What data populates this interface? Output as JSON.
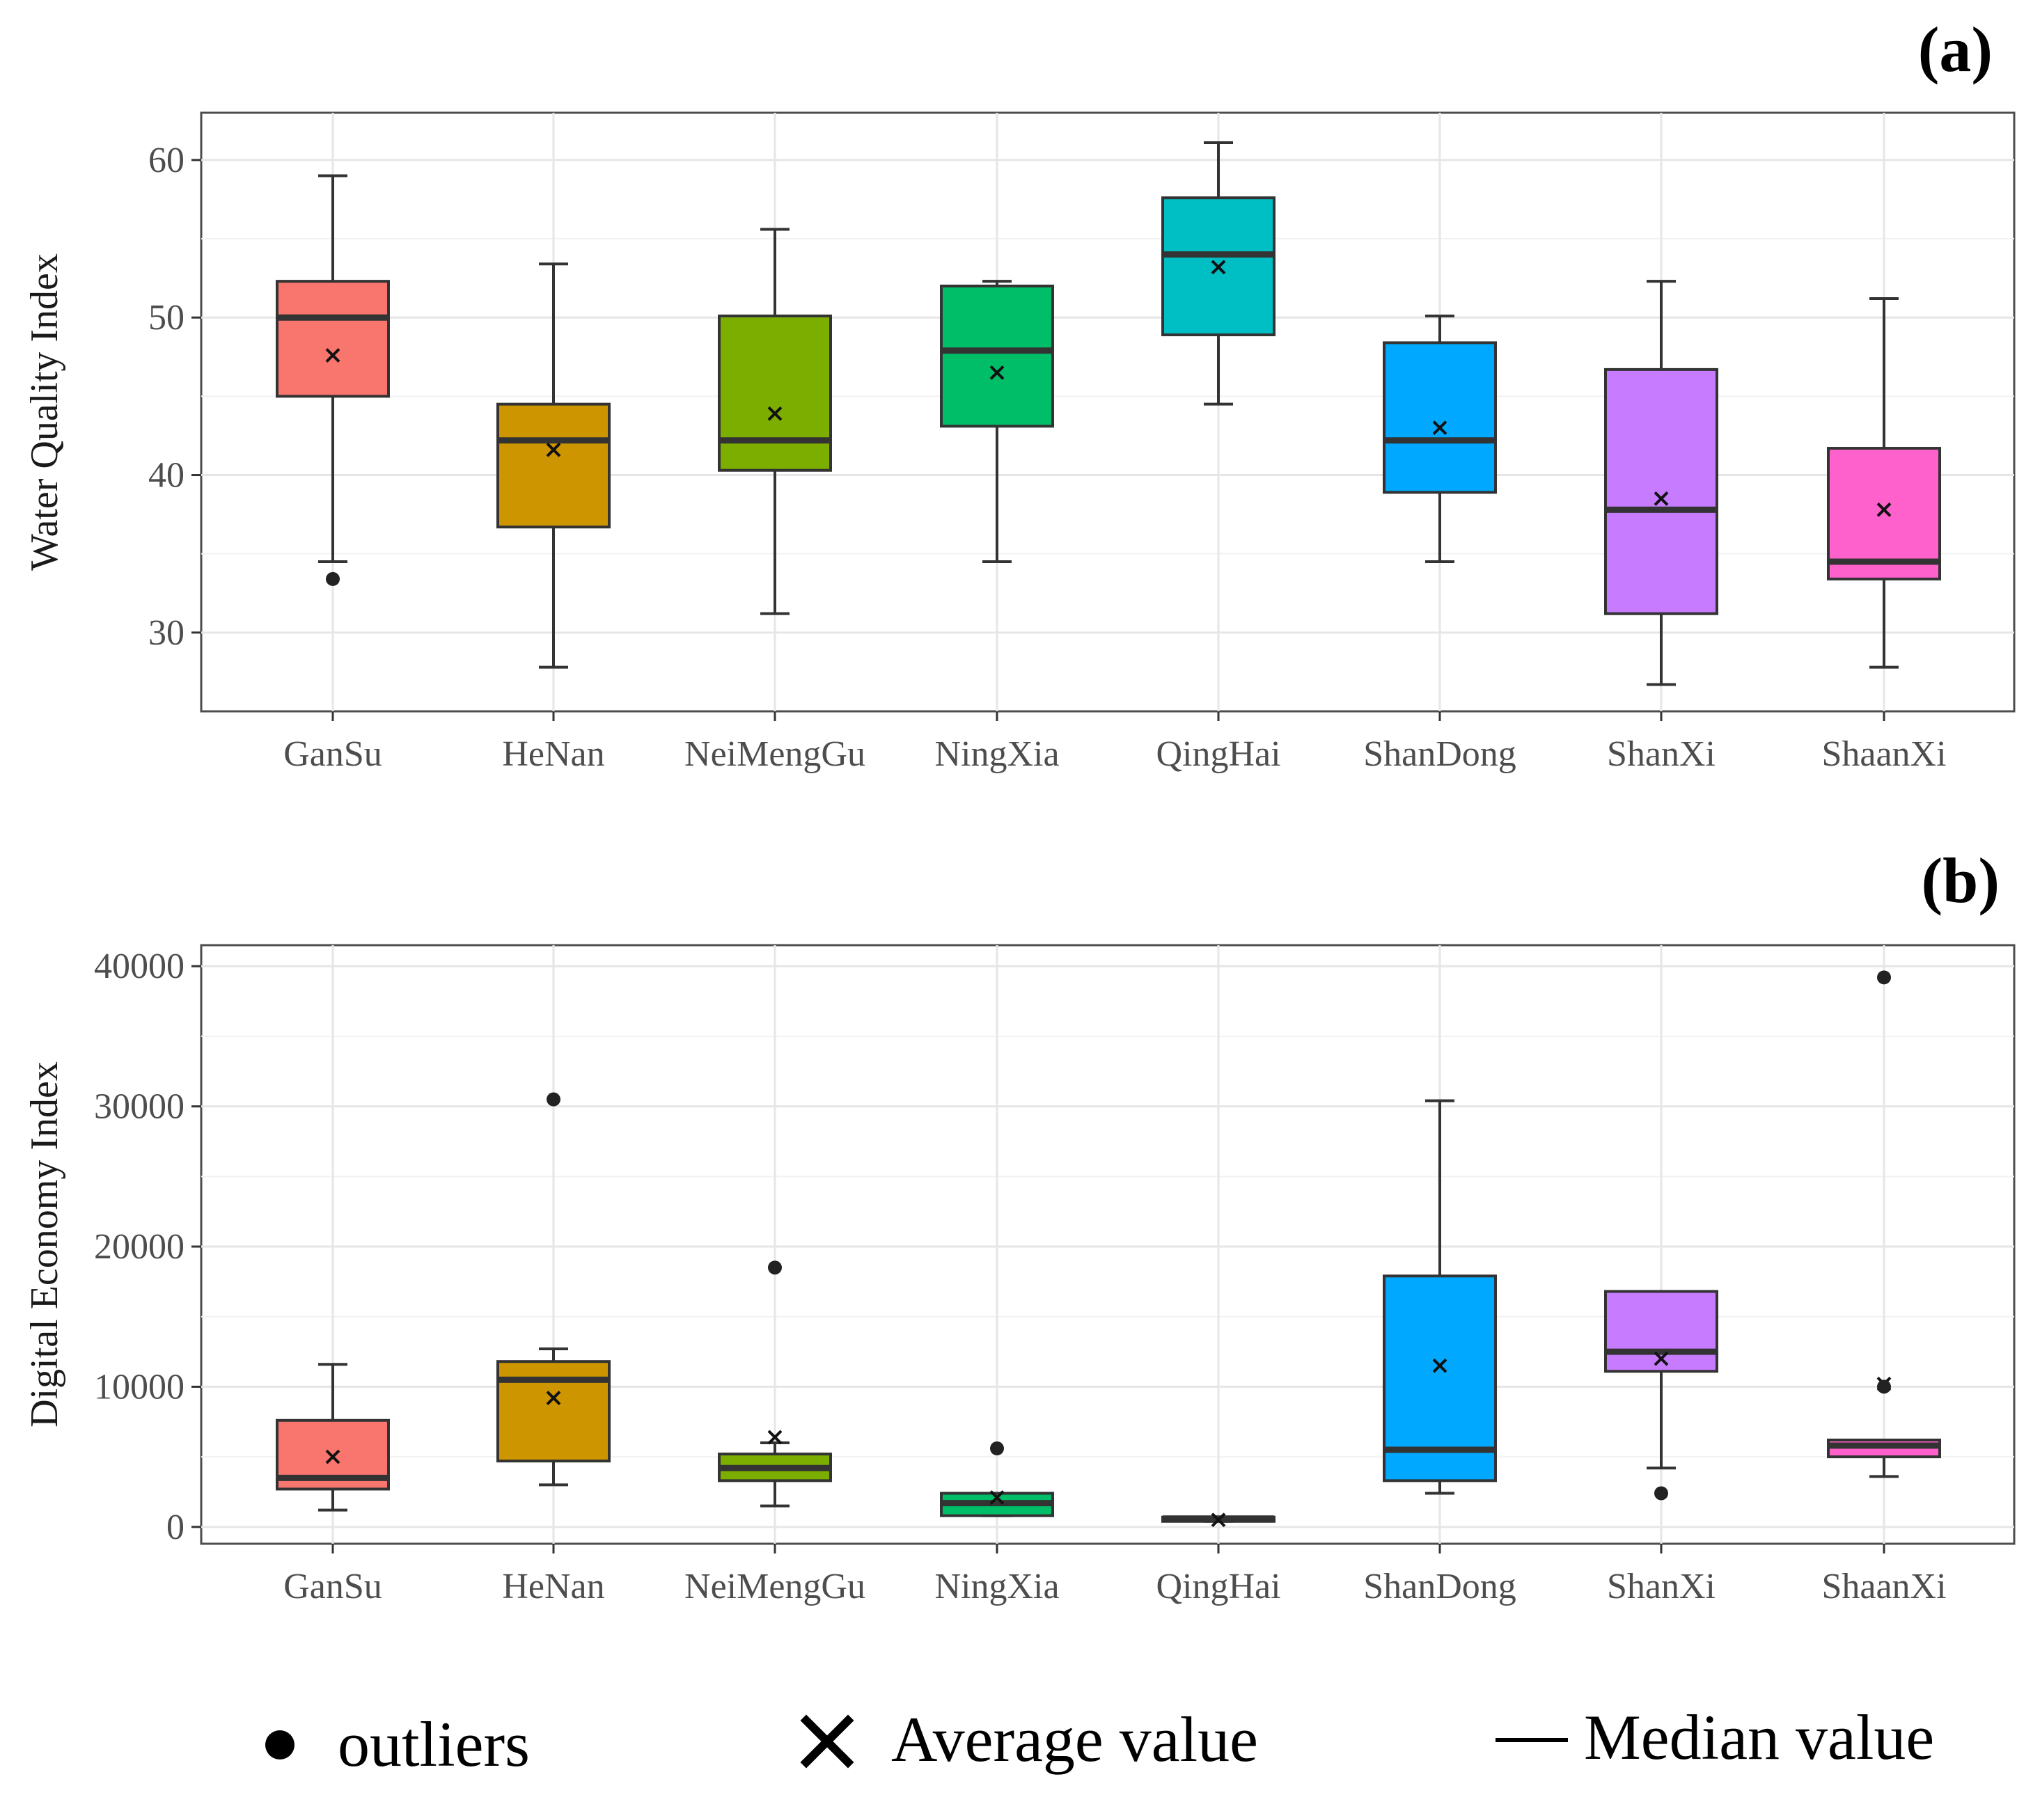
{
  "chart_data": [
    {
      "type": "box",
      "panel_label": "(a)",
      "title": "",
      "xlabel": "",
      "ylabel": "Water Quality Index",
      "ylim": [
        25,
        63
      ],
      "yticks": [
        30,
        40,
        50,
        60
      ],
      "yticklabels": [
        "30",
        "40",
        "50",
        "60"
      ],
      "grid": true,
      "categories": [
        "GanSu",
        "HeNan",
        "NeiMengGu",
        "NingXia",
        "QingHai",
        "ShanDong",
        "ShanXi",
        "ShaanXi"
      ],
      "colors": [
        "#F8766D",
        "#CD9600",
        "#7CAE00",
        "#00BE67",
        "#00BFC4",
        "#00A9FF",
        "#C77CFF",
        "#FF61CC"
      ],
      "boxes": [
        {
          "min": 34.5,
          "q1": 45.0,
          "median": 50.0,
          "q3": 52.3,
          "max": 59.0,
          "mean": 47.6,
          "outliers": [
            33.4
          ]
        },
        {
          "min": 27.8,
          "q1": 36.7,
          "median": 42.2,
          "q3": 44.5,
          "max": 53.4,
          "mean": 41.6,
          "outliers": []
        },
        {
          "min": 31.2,
          "q1": 40.3,
          "median": 42.2,
          "q3": 50.1,
          "max": 55.6,
          "mean": 43.9,
          "outliers": []
        },
        {
          "min": 34.5,
          "q1": 43.1,
          "median": 47.9,
          "q3": 52.0,
          "max": 52.3,
          "mean": 46.5,
          "outliers": []
        },
        {
          "min": 44.5,
          "q1": 48.9,
          "median": 54.0,
          "q3": 57.6,
          "max": 61.1,
          "mean": 53.2,
          "outliers": []
        },
        {
          "min": 34.5,
          "q1": 38.9,
          "median": 42.2,
          "q3": 48.4,
          "max": 50.1,
          "mean": 43.0,
          "outliers": []
        },
        {
          "min": 26.7,
          "q1": 31.2,
          "median": 37.8,
          "q3": 46.7,
          "max": 52.3,
          "mean": 38.5,
          "outliers": []
        },
        {
          "min": 27.8,
          "q1": 33.4,
          "median": 34.5,
          "q3": 41.7,
          "max": 51.2,
          "mean": 37.8,
          "outliers": []
        }
      ]
    },
    {
      "type": "box",
      "panel_label": "(b)",
      "title": "",
      "xlabel": "",
      "ylabel": "Digital Economy Index",
      "ylim": [
        -1200,
        41500
      ],
      "yticks": [
        0,
        10000,
        20000,
        30000,
        40000
      ],
      "yticklabels": [
        "0",
        "10000",
        "20000",
        "30000",
        "40000"
      ],
      "grid": true,
      "categories": [
        "GanSu",
        "HeNan",
        "NeiMengGu",
        "NingXia",
        "QingHai",
        "ShanDong",
        "ShanXi",
        "ShaanXi"
      ],
      "colors": [
        "#F8766D",
        "#CD9600",
        "#7CAE00",
        "#00BE67",
        "#00BFC4",
        "#00A9FF",
        "#C77CFF",
        "#FF61CC"
      ],
      "boxes": [
        {
          "min": 1200,
          "q1": 2700,
          "median": 3500,
          "q3": 7600,
          "max": 11600,
          "mean": 5000,
          "outliers": []
        },
        {
          "min": 3000,
          "q1": 4700,
          "median": 10500,
          "q3": 11800,
          "max": 12700,
          "mean": 9200,
          "outliers": [
            30500
          ]
        },
        {
          "min": 1500,
          "q1": 3300,
          "median": 4200,
          "q3": 5200,
          "max": 6000,
          "mean": 6400,
          "outliers": [
            18500
          ]
        },
        {
          "min": 800,
          "q1": 800,
          "median": 1700,
          "q3": 2400,
          "max": 2400,
          "mean": 2100,
          "outliers": [
            5600
          ]
        },
        {
          "min": 400,
          "q1": 400,
          "median": 600,
          "q3": 700,
          "max": 700,
          "mean": 500,
          "outliers": []
        },
        {
          "min": 2400,
          "q1": 3300,
          "median": 5500,
          "q3": 17900,
          "max": 30400,
          "mean": 11500,
          "outliers": []
        },
        {
          "min": 4200,
          "q1": 11100,
          "median": 12500,
          "q3": 16800,
          "max": 16800,
          "mean": 12000,
          "outliers": [
            2400
          ]
        },
        {
          "min": 3600,
          "q1": 5000,
          "median": 5800,
          "q3": 6200,
          "max": 6200,
          "mean": 10200,
          "outliers": [
            39200,
            10000
          ]
        }
      ]
    }
  ],
  "legend": {
    "outliers_label": "outliers",
    "average_label": "Average value",
    "median_label": "Median value"
  }
}
